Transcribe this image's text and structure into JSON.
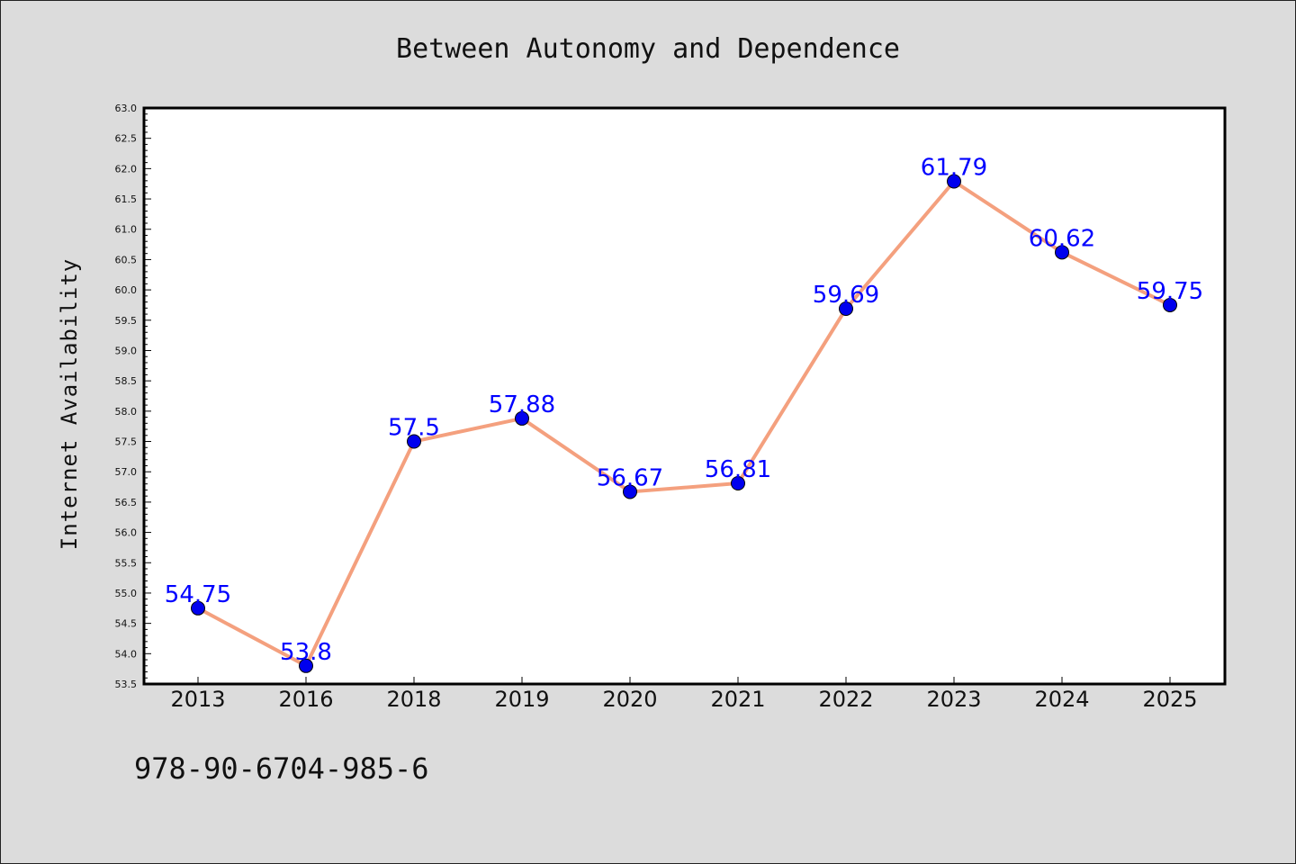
{
  "chart_data": {
    "type": "line",
    "title": "Between Autonomy and Dependence",
    "xlabel": "",
    "ylabel": "Internet Availability",
    "categories": [
      "2013",
      "2016",
      "2018",
      "2019",
      "2020",
      "2021",
      "2022",
      "2023",
      "2024",
      "2025"
    ],
    "series": [
      {
        "values": [
          54.75,
          53.8,
          57.5,
          57.88,
          56.67,
          56.81,
          59.69,
          61.79,
          60.62,
          59.75
        ],
        "data_labels": [
          "54.75",
          "53.8",
          "57.5",
          "57.88",
          "56.67",
          "56.81",
          "59.69",
          "61.79",
          "60.62",
          "59.75"
        ]
      }
    ],
    "ylim": [
      53.5,
      63.0
    ],
    "yticks": [
      "53.5",
      "54.0",
      "54.5",
      "55.0",
      "55.5",
      "56.0",
      "56.5",
      "57.0",
      "57.5",
      "58.0",
      "58.5",
      "59.0",
      "59.5",
      "60.0",
      "60.5",
      "61.0",
      "61.5",
      "62.0",
      "62.5",
      "63.0"
    ],
    "grid": false,
    "line_color": "#f4a07e",
    "marker_color": "#0000ee",
    "label_color": "#0000ff",
    "background": "#dcdcdc",
    "plot_background": "#ffffff"
  },
  "footer": {
    "isbn": "978-90-6704-985-6"
  }
}
